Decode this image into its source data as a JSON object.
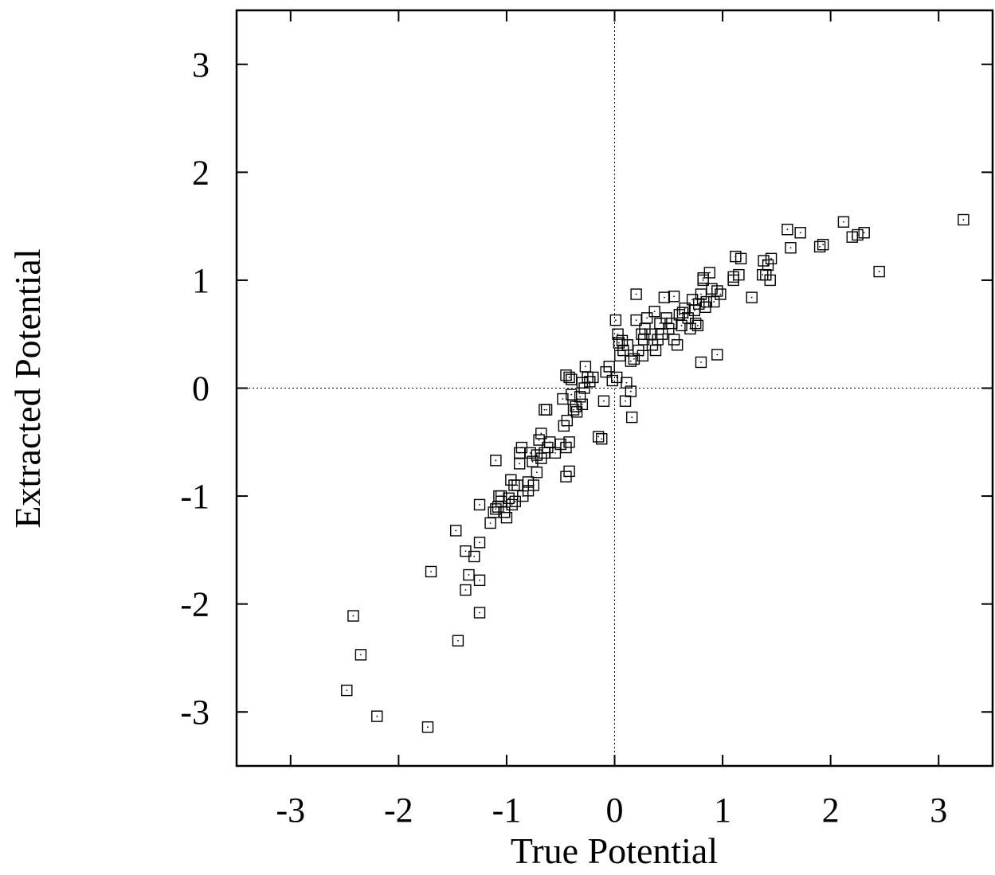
{
  "chart_data": {
    "type": "scatter",
    "title": "",
    "xlabel": "True Potential",
    "ylabel": "Extracted Potential",
    "xlim": [
      -3.5,
      3.5
    ],
    "ylim": [
      -3.5,
      3.5
    ],
    "xticks": [
      -3,
      -2,
      -1,
      0,
      1,
      2,
      3
    ],
    "yticks": [
      -3,
      -2,
      -1,
      0,
      1,
      2,
      3
    ],
    "xtick_labels": [
      "-3",
      "-2",
      "-1",
      "0",
      "1",
      "2",
      "3"
    ],
    "ytick_labels": [
      "-3",
      "-2",
      "-1",
      "0",
      "1",
      "2",
      "3"
    ],
    "grid": false,
    "zero_lines": true,
    "marker": "open-square-with-center-dot",
    "points": [
      [
        3.23,
        1.56
      ],
      [
        2.45,
        1.08
      ],
      [
        2.31,
        1.44
      ],
      [
        2.25,
        1.42
      ],
      [
        2.2,
        1.4
      ],
      [
        2.12,
        1.54
      ],
      [
        1.93,
        1.33
      ],
      [
        1.9,
        1.31
      ],
      [
        1.72,
        1.44
      ],
      [
        1.63,
        1.3
      ],
      [
        1.6,
        1.47
      ],
      [
        1.45,
        1.2
      ],
      [
        1.42,
        1.14
      ],
      [
        1.44,
        1.0
      ],
      [
        1.4,
        1.05
      ],
      [
        1.38,
        1.18
      ],
      [
        1.37,
        1.05
      ],
      [
        1.27,
        0.84
      ],
      [
        1.17,
        1.2
      ],
      [
        1.15,
        1.05
      ],
      [
        1.12,
        1.22
      ],
      [
        1.1,
        1.0
      ],
      [
        1.1,
        1.03
      ],
      [
        0.98,
        0.87
      ],
      [
        0.95,
        0.9
      ],
      [
        0.95,
        0.31
      ],
      [
        0.92,
        0.8
      ],
      [
        0.9,
        0.92
      ],
      [
        0.88,
        1.07
      ],
      [
        0.85,
        0.8
      ],
      [
        0.84,
        0.75
      ],
      [
        0.82,
        1.0
      ],
      [
        0.82,
        1.02
      ],
      [
        0.8,
        0.87
      ],
      [
        0.8,
        0.24
      ],
      [
        0.78,
        0.78
      ],
      [
        0.77,
        0.58
      ],
      [
        0.75,
        0.6
      ],
      [
        0.74,
        0.72
      ],
      [
        0.72,
        0.82
      ],
      [
        0.7,
        0.55
      ],
      [
        0.68,
        0.65
      ],
      [
        0.65,
        0.74
      ],
      [
        0.63,
        0.7
      ],
      [
        0.62,
        0.58
      ],
      [
        0.6,
        0.68
      ],
      [
        0.58,
        0.4
      ],
      [
        0.55,
        0.45
      ],
      [
        0.55,
        0.85
      ],
      [
        0.53,
        0.6
      ],
      [
        0.5,
        0.55
      ],
      [
        0.48,
        0.65
      ],
      [
        0.46,
        0.84
      ],
      [
        0.44,
        0.5
      ],
      [
        0.42,
        0.6
      ],
      [
        0.4,
        0.45
      ],
      [
        0.38,
        0.35
      ],
      [
        0.37,
        0.71
      ],
      [
        0.35,
        0.4
      ],
      [
        0.33,
        0.5
      ],
      [
        0.3,
        0.65
      ],
      [
        0.28,
        0.55
      ],
      [
        0.27,
        0.45
      ],
      [
        0.26,
        0.3
      ],
      [
        0.25,
        0.5
      ],
      [
        0.22,
        0.35
      ],
      [
        0.2,
        0.63
      ],
      [
        0.2,
        0.87
      ],
      [
        0.18,
        0.27
      ],
      [
        0.15,
        0.25
      ],
      [
        0.15,
        -0.03
      ],
      [
        0.16,
        -0.27
      ],
      [
        0.12,
        0.4
      ],
      [
        0.11,
        0.05
      ],
      [
        0.1,
        -0.12
      ],
      [
        0.08,
        0.35
      ],
      [
        0.07,
        0.44
      ],
      [
        0.05,
        0.3
      ],
      [
        0.04,
        0.42
      ],
      [
        0.03,
        0.5
      ],
      [
        0.01,
        0.63
      ],
      [
        0.02,
        0.1
      ],
      [
        -0.02,
        0.07
      ],
      [
        -0.05,
        0.2
      ],
      [
        -0.08,
        0.15
      ],
      [
        -0.1,
        -0.12
      ],
      [
        -0.12,
        -0.47
      ],
      [
        -0.15,
        -0.45
      ],
      [
        -0.2,
        0.1
      ],
      [
        -0.23,
        0.06
      ],
      [
        -0.25,
        0.1
      ],
      [
        -0.27,
        0.2
      ],
      [
        -0.28,
        0.0
      ],
      [
        -0.3,
        0.05
      ],
      [
        -0.3,
        -0.15
      ],
      [
        -0.32,
        -0.08
      ],
      [
        -0.35,
        -0.22
      ],
      [
        -0.36,
        -0.17
      ],
      [
        -0.38,
        -0.2
      ],
      [
        -0.4,
        -0.06
      ],
      [
        -0.4,
        0.08
      ],
      [
        -0.42,
        0.1
      ],
      [
        -0.44,
        -0.3
      ],
      [
        -0.45,
        0.12
      ],
      [
        -0.47,
        -0.35
      ],
      [
        -0.48,
        -0.1
      ],
      [
        -0.42,
        -0.5
      ],
      [
        -0.45,
        -0.55
      ],
      [
        -0.5,
        -0.52
      ],
      [
        -0.45,
        -0.82
      ],
      [
        -0.42,
        -0.77
      ],
      [
        -0.55,
        -0.6
      ],
      [
        -0.6,
        -0.5
      ],
      [
        -0.62,
        -0.55
      ],
      [
        -0.65,
        -0.6
      ],
      [
        -0.68,
        -0.65
      ],
      [
        -0.63,
        -0.2
      ],
      [
        -0.65,
        -0.2
      ],
      [
        -0.68,
        -0.42
      ],
      [
        -0.7,
        -0.48
      ],
      [
        -0.72,
        -0.62
      ],
      [
        -0.72,
        -0.78
      ],
      [
        -0.75,
        -0.9
      ],
      [
        -0.76,
        -0.68
      ],
      [
        -0.78,
        -0.6
      ],
      [
        -0.8,
        -0.87
      ],
      [
        -0.8,
        -0.95
      ],
      [
        -0.85,
        -1.0
      ],
      [
        -0.86,
        -0.55
      ],
      [
        -0.88,
        -0.6
      ],
      [
        -0.88,
        -0.7
      ],
      [
        -0.9,
        -0.9
      ],
      [
        -0.92,
        -1.05
      ],
      [
        -0.93,
        -0.9
      ],
      [
        -0.95,
        -1.08
      ],
      [
        -0.96,
        -0.85
      ],
      [
        -0.98,
        -1.02
      ],
      [
        -1.0,
        -1.2
      ],
      [
        -1.02,
        -1.15
      ],
      [
        -1.05,
        -1.0
      ],
      [
        -1.05,
        -1.05
      ],
      [
        -1.07,
        -1.0
      ],
      [
        -1.08,
        -1.1
      ],
      [
        -1.1,
        -1.12
      ],
      [
        -1.1,
        -0.67
      ],
      [
        -1.12,
        -1.15
      ],
      [
        -1.15,
        -1.25
      ],
      [
        -1.25,
        -1.08
      ],
      [
        -1.25,
        -1.43
      ],
      [
        -1.25,
        -1.78
      ],
      [
        -1.25,
        -2.08
      ],
      [
        -1.3,
        -1.56
      ],
      [
        -1.35,
        -1.73
      ],
      [
        -1.38,
        -1.51
      ],
      [
        -1.38,
        -1.87
      ],
      [
        -1.47,
        -1.32
      ],
      [
        -1.45,
        -2.34
      ],
      [
        -1.7,
        -1.7
      ],
      [
        -1.73,
        -3.14
      ],
      [
        -2.2,
        -3.04
      ],
      [
        -2.35,
        -2.47
      ],
      [
        -2.42,
        -2.11
      ],
      [
        -2.48,
        -2.8
      ]
    ]
  }
}
